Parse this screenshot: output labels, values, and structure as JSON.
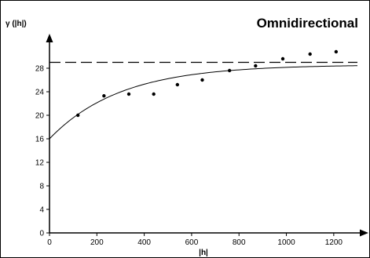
{
  "chart_data": {
    "type": "scatter",
    "title": "Omnidirectional",
    "xlabel": "|h|",
    "ylabel": "γ (|h|)",
    "xlim": [
      0,
      1300
    ],
    "ylim": [
      0,
      32
    ],
    "xticks": [
      0,
      200,
      400,
      600,
      800,
      1000,
      1200
    ],
    "yticks": [
      0,
      4,
      8,
      12,
      16,
      20,
      24,
      28
    ],
    "xtick_labels": [
      "0",
      "200",
      "400",
      "600",
      "800",
      "1000",
      "1200"
    ],
    "ytick_labels": [
      "0",
      "4",
      "8",
      "12",
      "16",
      "20",
      "24",
      "28"
    ],
    "grid": false,
    "legend": "none",
    "series": [
      {
        "type": "scatter",
        "x": [
          120,
          230,
          335,
          440,
          540,
          645,
          760,
          870,
          985,
          1100,
          1210
        ],
        "y": [
          20.0,
          23.3,
          23.6,
          23.6,
          25.2,
          26.0,
          27.6,
          28.4,
          29.6,
          30.4,
          30.8
        ]
      },
      {
        "type": "line",
        "style": "solid",
        "model": "exponential",
        "nugget": 16.0,
        "sill": 28.6,
        "range": 900
      },
      {
        "type": "line",
        "style": "dashed",
        "y": 29.0
      }
    ]
  }
}
